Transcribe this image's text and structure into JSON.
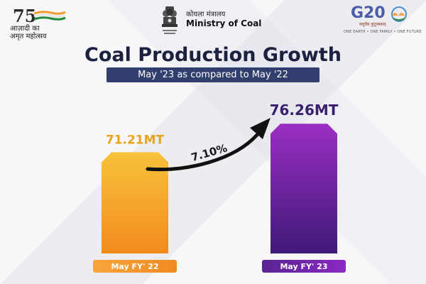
{
  "header": {
    "azadi": {
      "number": "75",
      "line1": "आज़ादी का",
      "line2": "अमृत महोत्सव"
    },
    "ministry": {
      "hindi": "कोयला मंत्रालय",
      "english": "Ministry of Coal"
    },
    "g20": {
      "title": "G20",
      "hindi_tagline": "वसुधैव कुटुम्बकम्",
      "tagline": "ONE EARTH • ONE FAMILY • ONE FUTURE"
    }
  },
  "colors": {
    "title": "#1d2140",
    "subtitle_bg": "#313e6e",
    "bar_2022": "#f5a623",
    "bar_2023": "#7b1fa2",
    "label_2022": "#e8a31a",
    "label_2023": "#3a1f6e"
  },
  "chart_data": {
    "type": "bar",
    "title": "Coal Production Growth",
    "subtitle": "May '23 as compared to May '22",
    "categories": [
      "May FY' 22",
      "May FY' 23"
    ],
    "values": [
      71.21,
      76.26
    ],
    "value_labels": [
      "71.21MT",
      "76.26MT"
    ],
    "growth_annotation": "7.10%",
    "xlabel": "",
    "ylabel": "",
    "grid": false,
    "legend": "none"
  }
}
